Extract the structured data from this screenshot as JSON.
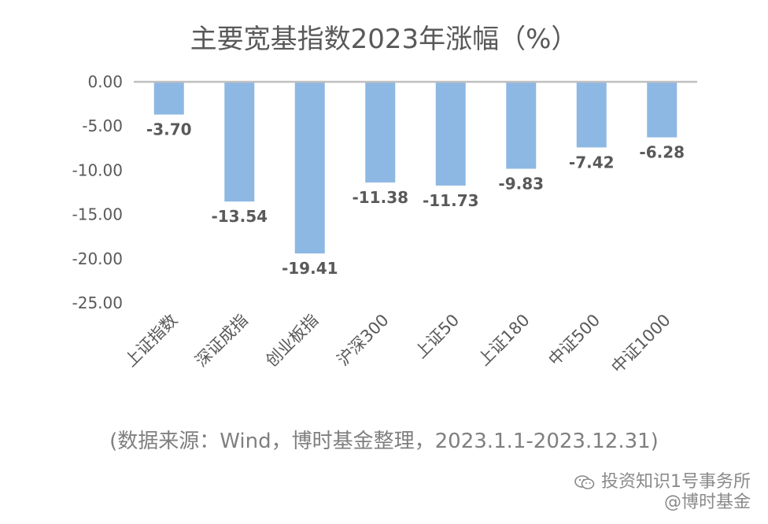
{
  "chart_data": {
    "type": "bar",
    "title": "主要宽基指数2023年涨幅（%）",
    "categories": [
      "上证指数",
      "深证成指",
      "创业板指",
      "沪深300",
      "上证50",
      "上证180",
      "中证500",
      "中证1000"
    ],
    "values": [
      -3.7,
      -13.54,
      -19.41,
      -11.38,
      -11.73,
      -9.83,
      -7.42,
      -6.28
    ],
    "data_labels": [
      "-3.70",
      "-13.54",
      "-19.41",
      "-11.38",
      "-11.73",
      "-9.83",
      "-7.42",
      "-6.28"
    ],
    "y_ticks": [
      0,
      -5,
      -10,
      -15,
      -20,
      -25
    ],
    "y_tick_labels": [
      "0.00",
      "-5.00",
      "-10.00",
      "-15.00",
      "-20.00",
      "-25.00"
    ],
    "ylim": [
      -25,
      0
    ],
    "grid": false,
    "xlabel": "",
    "ylabel": "",
    "bar_color": "#8db8e3",
    "axis_color": "#bfbfbf"
  },
  "source_note": "(数据来源：Wind，博时基金整理，2023.1.1-2023.12.31)",
  "watermark": {
    "line1": "投资知识1号事务所",
    "line2": "@博时基金",
    "icon": "wechat-icon"
  }
}
